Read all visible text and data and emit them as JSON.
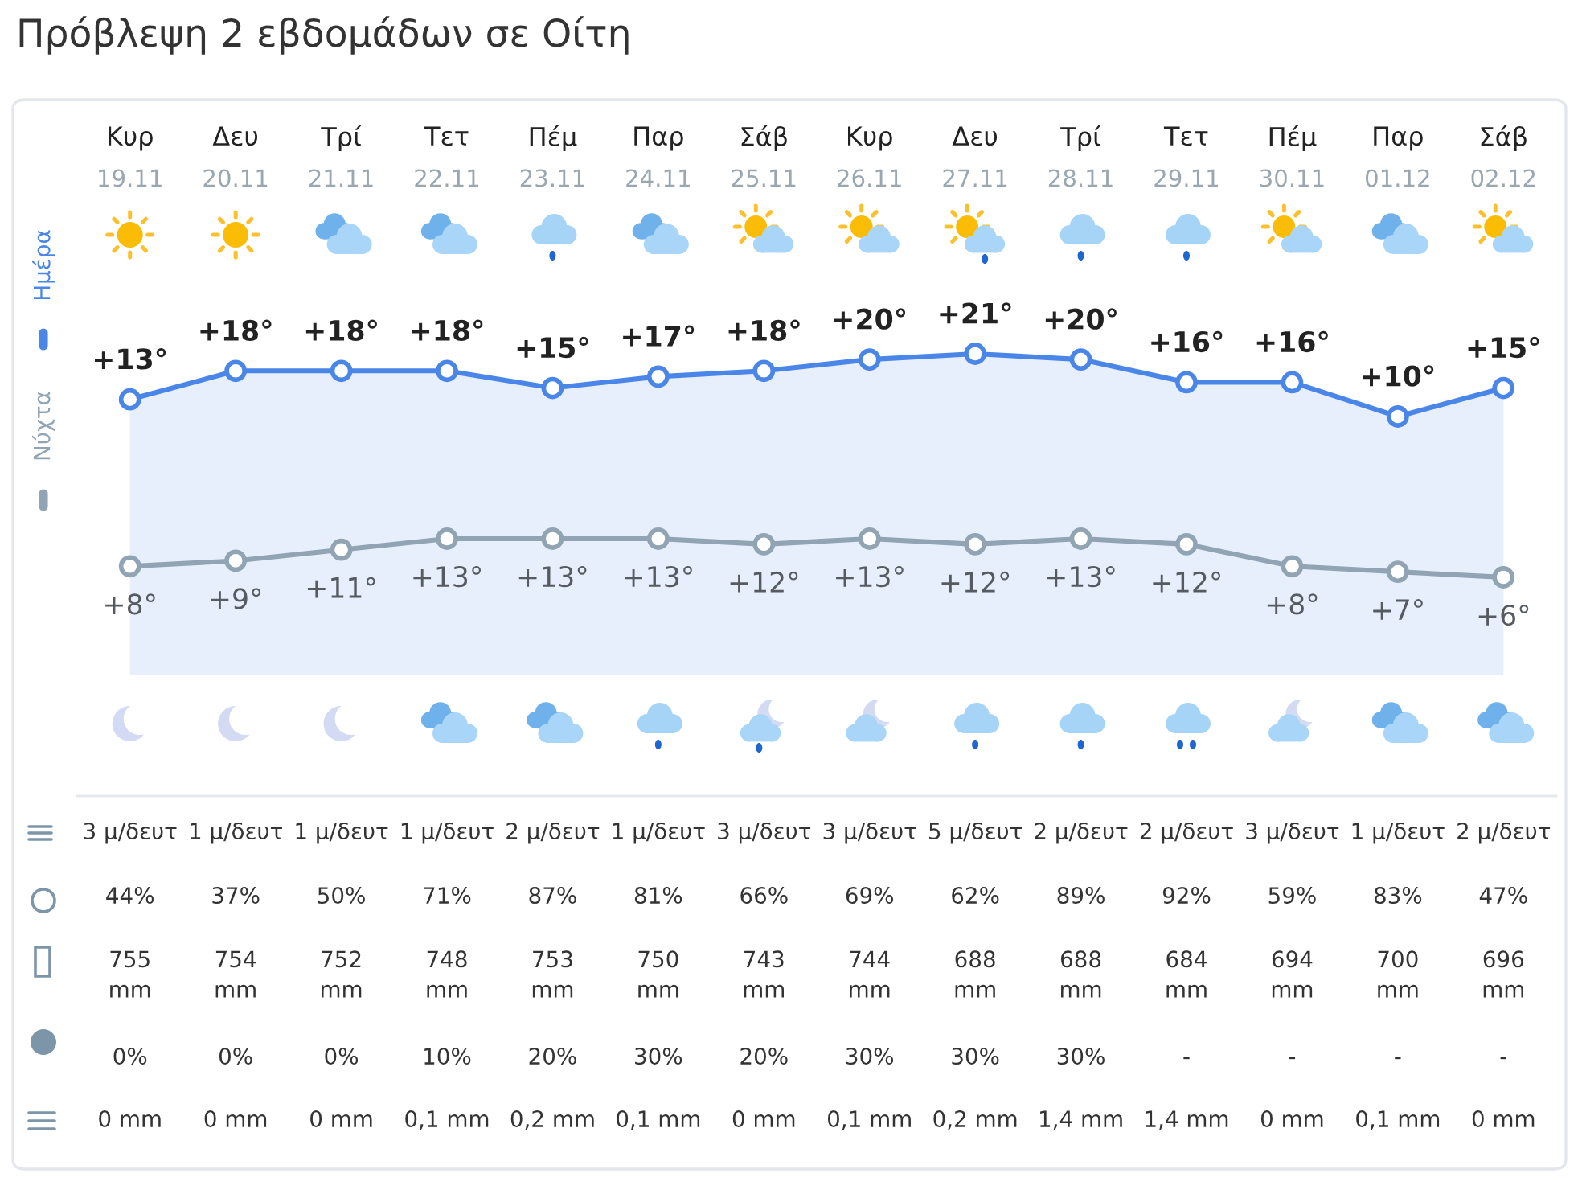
{
  "chart_data": [
    {
      "type": "line",
      "title": "Πρόβλεψη 2 εβδομάδων σε Οίτη",
      "categories": [
        "Κυρ\n19.11",
        "Δευ\n20.11",
        "Τρί\n21.11",
        "Τετ\n22.11",
        "Πέμ\n23.11",
        "Παρ\n24.11",
        "Σάβ\n25.11",
        "Κυρ\n26.11",
        "Δευ\n27.11",
        "Τρί\n28.11",
        "Τετ\n29.11",
        "Πέμ\n30.11",
        "Παρ\n01.12",
        "Σάβ\n02.12"
      ],
      "series": [
        {
          "name": "Ημέρα",
          "color": "#4a86e8",
          "values": [
            13,
            18,
            18,
            18,
            15,
            17,
            18,
            20,
            21,
            20,
            16,
            16,
            10,
            15
          ],
          "value_labels": [
            "+13°",
            "+18°",
            "+18°",
            "+18°",
            "+15°",
            "+17°",
            "+18°",
            "+20°",
            "+21°",
            "+20°",
            "+16°",
            "+16°",
            "+10°",
            "+15°"
          ]
        }
      ],
      "marker": "circle",
      "legend": "left",
      "tick_labels": "x"
    },
    {
      "type": "line",
      "categories": [
        null,
        null,
        null,
        null,
        null,
        null,
        null,
        null,
        null,
        null,
        null,
        null,
        null,
        null
      ],
      "series": [
        {
          "name": "Νύχτα",
          "color": "#90a4b4",
          "values": [
            8,
            9,
            11,
            13,
            13,
            13,
            12,
            13,
            12,
            13,
            12,
            8,
            7,
            6
          ],
          "value_labels": [
            "+8°",
            "+9°",
            "+11°",
            "+13°",
            "+13°",
            "+13°",
            "+12°",
            "+13°",
            "+12°",
            "+13°",
            "+12°",
            "+8°",
            "+7°",
            "+6°"
          ]
        }
      ],
      "marker": "circle",
      "legend": "left",
      "tick_labels": false
    },
    {
      "type": "other",
      "annotations": [
        "3 μ/δευτ",
        "1 μ/δευτ",
        "1 μ/δευτ",
        "1 μ/δευτ",
        "2 μ/δευτ",
        "1 μ/δευτ",
        "3 μ/δευτ",
        "3 μ/δευτ",
        "5 μ/δευτ",
        "2 μ/δευτ",
        "2 μ/δευτ",
        "3 μ/δευτ",
        "1 μ/δευτ",
        "2 μ/δευτ",
        "44%",
        "37%",
        "50%",
        "71%",
        "87%",
        "81%",
        "66%",
        "69%",
        "62%",
        "89%",
        "92%",
        "59%",
        "83%",
        "47%",
        "755\nmm",
        "754\nmm",
        "752\nmm",
        "748\nmm",
        "753\nmm",
        "750\nmm",
        "743\nmm",
        "744\nmm",
        "688\nmm",
        "688\nmm",
        "684\nmm",
        "694\nmm",
        "700\nmm",
        "696\nmm",
        "0%",
        "0%",
        "0%",
        "10%",
        "20%",
        "30%",
        "20%",
        "30%",
        "30%",
        "30%",
        "-",
        "-",
        "-",
        "-",
        "0 mm",
        "0 mm",
        "0 mm",
        "0,1 mm",
        "0,2 mm",
        "0,1 mm",
        "0 mm",
        "0,1 mm",
        "0,2 mm",
        "1,4 mm",
        "1,4 mm",
        "0 mm",
        "0,1 mm",
        "0 mm"
      ]
    }
  ]
}
